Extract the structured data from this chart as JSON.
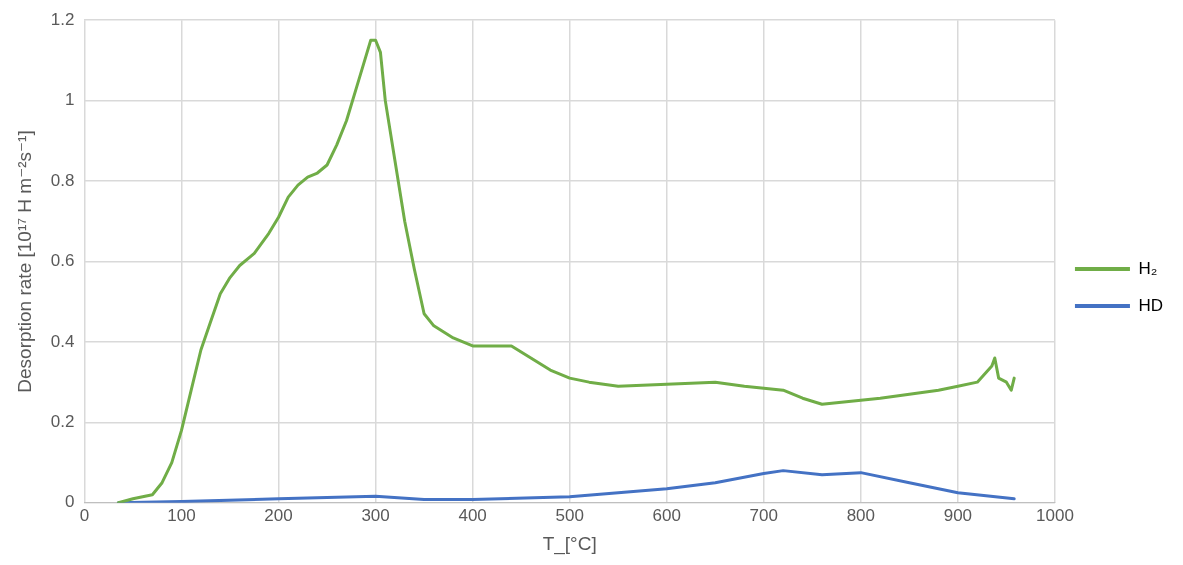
{
  "chart_data": {
    "type": "line",
    "xlabel": "T_[°C]",
    "ylabel": "Desorption rate [10¹⁷ H m⁻²s⁻¹]",
    "xlim": [
      0,
      1000
    ],
    "xticks": [
      0,
      100,
      200,
      300,
      400,
      500,
      600,
      700,
      800,
      900,
      1000
    ],
    "ylim": [
      0,
      1.2
    ],
    "yticks": [
      0,
      0.2,
      0.4,
      0.6,
      0.8,
      1,
      1.2
    ],
    "grid": true,
    "legend": "right",
    "marker": "none",
    "series": [
      {
        "name": "H₂",
        "color": "#70ad47",
        "x": [
          35,
          50,
          70,
          80,
          90,
          100,
          110,
          120,
          130,
          140,
          150,
          160,
          175,
          190,
          200,
          210,
          220,
          230,
          240,
          250,
          260,
          270,
          280,
          290,
          295,
          300,
          305,
          310,
          320,
          330,
          340,
          350,
          360,
          380,
          400,
          420,
          440,
          460,
          480,
          500,
          520,
          550,
          600,
          650,
          680,
          700,
          720,
          740,
          760,
          780,
          800,
          820,
          850,
          880,
          900,
          920,
          935,
          938,
          942,
          950,
          955,
          958
        ],
        "values": [
          0,
          0.01,
          0.02,
          0.05,
          0.1,
          0.18,
          0.28,
          0.38,
          0.45,
          0.52,
          0.56,
          0.59,
          0.62,
          0.67,
          0.71,
          0.76,
          0.79,
          0.81,
          0.82,
          0.84,
          0.89,
          0.95,
          1.03,
          1.11,
          1.15,
          1.15,
          1.12,
          1,
          0.85,
          0.7,
          0.58,
          0.47,
          0.44,
          0.41,
          0.39,
          0.39,
          0.39,
          0.36,
          0.33,
          0.31,
          0.3,
          0.29,
          0.295,
          0.3,
          0.29,
          0.285,
          0.28,
          0.26,
          0.245,
          0.25,
          0.255,
          0.26,
          0.27,
          0.28,
          0.29,
          0.3,
          0.34,
          0.36,
          0.31,
          0.3,
          0.28,
          0.31
        ]
      },
      {
        "name": "HD",
        "color": "#4472c4",
        "x": [
          35,
          100,
          200,
          300,
          350,
          400,
          500,
          600,
          650,
          700,
          720,
          760,
          800,
          850,
          900,
          958
        ],
        "values": [
          0,
          0.003,
          0.01,
          0.016,
          0.008,
          0.008,
          0.015,
          0.035,
          0.05,
          0.073,
          0.08,
          0.07,
          0.075,
          0.05,
          0.025,
          0.01
        ]
      }
    ]
  }
}
